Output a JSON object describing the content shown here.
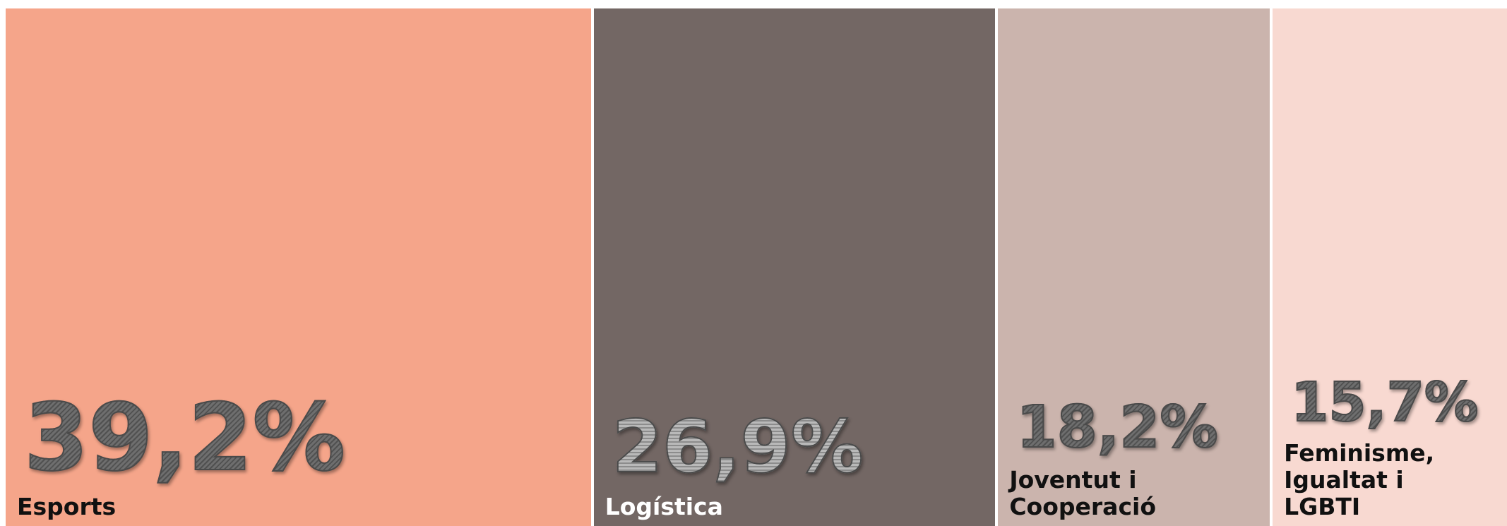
{
  "chart_data": {
    "type": "treemap",
    "categories": [
      "Esports",
      "Logística",
      "Joventut i Cooperació",
      "Feminisme, Igualtat i LGBTI"
    ],
    "values": [
      39.2,
      26.9,
      18.2,
      15.7
    ],
    "value_labels": [
      "39,2%",
      "26,9%",
      "18,2%",
      "15,7%"
    ],
    "colors": [
      "#f5a58a",
      "#736764",
      "#cbb4ad",
      "#f8d9d1"
    ]
  }
}
